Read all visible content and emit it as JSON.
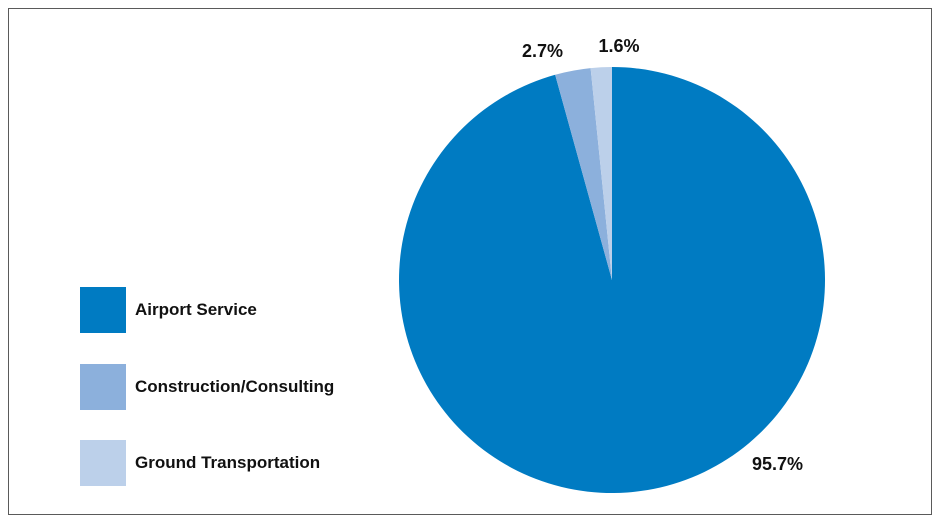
{
  "chart_data": {
    "type": "pie",
    "slices": [
      {
        "label": "Airport Service",
        "value": 95.7,
        "value_label": "95.7%",
        "color": "#007bc2"
      },
      {
        "label": "Construction/Consulting",
        "value": 2.7,
        "value_label": "2.7%",
        "color": "#8cb0dc"
      },
      {
        "label": "Ground Transportation",
        "value": 1.6,
        "value_label": "1.6%",
        "color": "#bcd0ea"
      }
    ],
    "legend_position": "left"
  }
}
